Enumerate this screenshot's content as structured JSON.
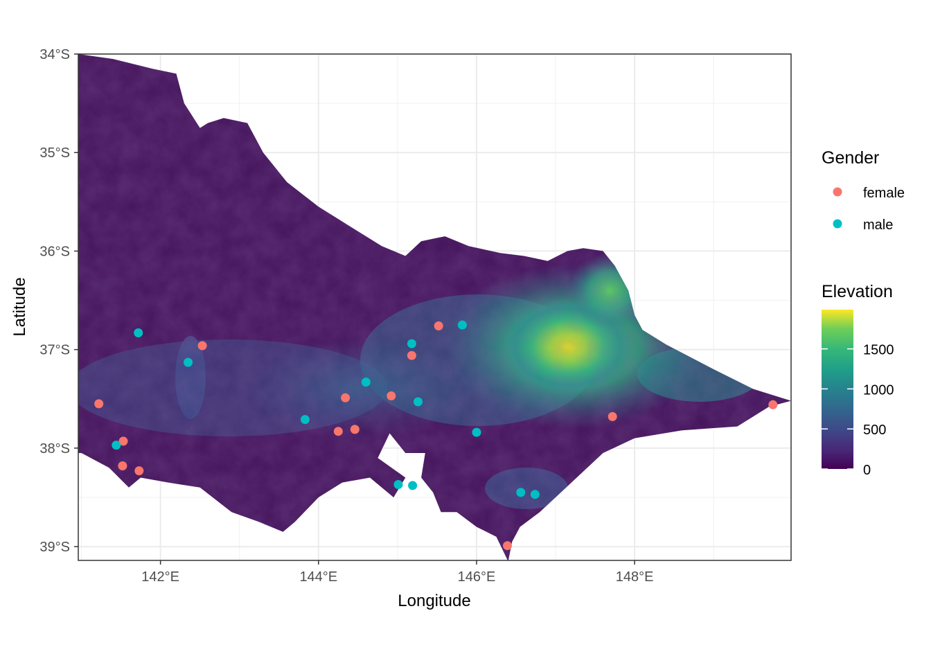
{
  "chart_data": {
    "type": "scatter",
    "title": "",
    "xlabel": "Longitude",
    "ylabel": "Latitude",
    "xlim": [
      140.96,
      149.98
    ],
    "ylim": [
      -39.14,
      -34.0
    ],
    "x_ticks": [
      142,
      144,
      146,
      148
    ],
    "x_tick_labels": [
      "142°E",
      "144°E",
      "146°E",
      "148°E"
    ],
    "y_ticks": [
      -34,
      -35,
      -36,
      -37,
      -38,
      -39
    ],
    "y_tick_labels": [
      "34°S",
      "35°S",
      "36°S",
      "37°S",
      "38°S",
      "39°S"
    ],
    "grid": true,
    "legend_position": "right",
    "raster": {
      "name": "Elevation",
      "palette": "viridis",
      "colorbar_ticks": [
        0,
        500,
        1000,
        1500
      ],
      "colorbar_tick_labels": [
        "0",
        "500",
        "1000",
        "1500"
      ],
      "range": [
        0,
        1990
      ]
    },
    "gender_legend_title": "Gender",
    "series": [
      {
        "name": "female",
        "color": "#F8766D",
        "points": [
          {
            "x": 141.22,
            "y": -37.55
          },
          {
            "x": 141.53,
            "y": -37.93
          },
          {
            "x": 141.52,
            "y": -38.18
          },
          {
            "x": 141.73,
            "y": -38.23
          },
          {
            "x": 142.53,
            "y": -36.96
          },
          {
            "x": 144.34,
            "y": -37.49
          },
          {
            "x": 144.25,
            "y": -37.83
          },
          {
            "x": 144.46,
            "y": -37.81
          },
          {
            "x": 144.92,
            "y": -37.47
          },
          {
            "x": 145.18,
            "y": -37.06
          },
          {
            "x": 145.52,
            "y": -36.76
          },
          {
            "x": 146.39,
            "y": -38.99
          },
          {
            "x": 147.72,
            "y": -37.68
          },
          {
            "x": 149.75,
            "y": -37.56
          }
        ]
      },
      {
        "name": "male",
        "color": "#00BFC4",
        "points": [
          {
            "x": 141.72,
            "y": -36.83
          },
          {
            "x": 142.35,
            "y": -37.13
          },
          {
            "x": 141.44,
            "y": -37.97
          },
          {
            "x": 143.83,
            "y": -37.71
          },
          {
            "x": 144.6,
            "y": -37.33
          },
          {
            "x": 145.18,
            "y": -36.94
          },
          {
            "x": 145.26,
            "y": -37.53
          },
          {
            "x": 145.82,
            "y": -36.75
          },
          {
            "x": 146.0,
            "y": -37.84
          },
          {
            "x": 145.01,
            "y": -38.37
          },
          {
            "x": 145.19,
            "y": -38.38
          },
          {
            "x": 146.56,
            "y": -38.45
          },
          {
            "x": 146.74,
            "y": -38.47
          }
        ]
      }
    ]
  }
}
